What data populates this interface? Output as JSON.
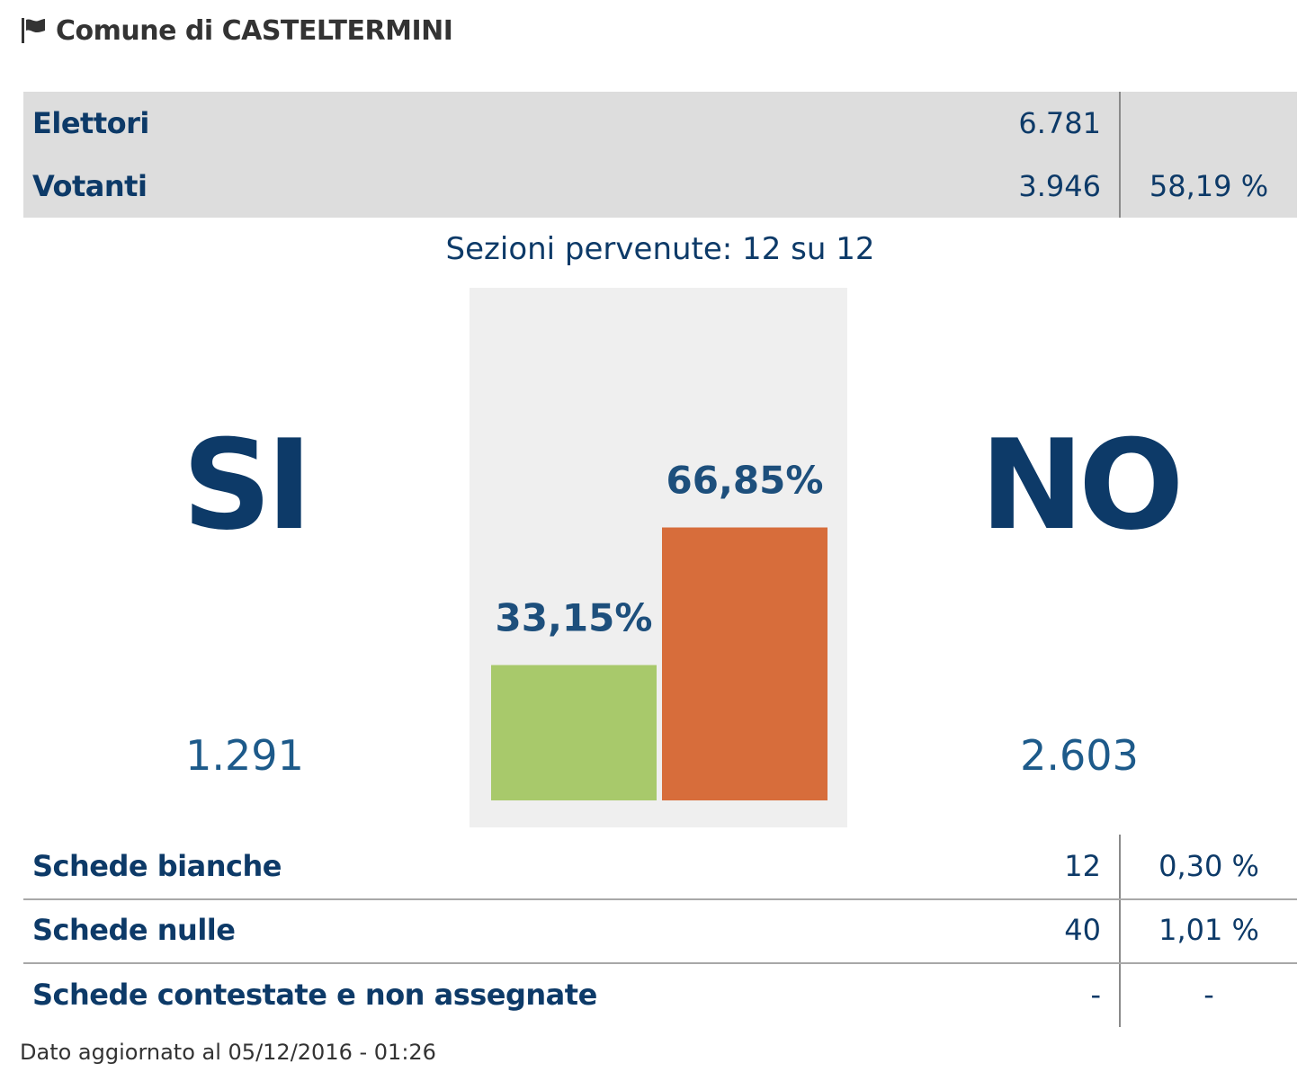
{
  "header": {
    "title": "Comune di CASTELTERMINI",
    "icon": "flag-icon"
  },
  "summary": {
    "elettori": {
      "label": "Elettori",
      "value": "6.781",
      "pct": ""
    },
    "votanti": {
      "label": "Votanti",
      "value": "3.946",
      "pct": "58,19 %"
    }
  },
  "sections_text": "Sezioni pervenute: 12 su 12",
  "results": {
    "si": {
      "label": "SI",
      "count": "1.291"
    },
    "no": {
      "label": "NO",
      "count": "2.603"
    }
  },
  "chart_data": {
    "type": "bar",
    "categories": [
      "SI",
      "NO"
    ],
    "values": [
      33.15,
      66.85
    ],
    "data_labels": [
      "33,15%",
      "66,85%"
    ],
    "colors": [
      "#a8c96b",
      "#d76d3b"
    ],
    "ylim": [
      0,
      100
    ],
    "title": "",
    "xlabel": "",
    "ylabel": "",
    "grid": false
  },
  "ballots": [
    {
      "label": "Schede bianche",
      "value": "12",
      "pct": "0,30 %"
    },
    {
      "label": "Schede nulle",
      "value": "40",
      "pct": "1,01 %"
    },
    {
      "label": "Schede contestate e non assegnate",
      "value": "-",
      "pct": "-"
    }
  ],
  "footer": "Dato aggiornato al 05/12/2016 - 01:26",
  "colors": {
    "text_primary": "#0d3a68",
    "panel_bg": "#dddddd",
    "chart_bg": "#efefef",
    "si_bar": "#a8c96b",
    "no_bar": "#d76d3b"
  }
}
